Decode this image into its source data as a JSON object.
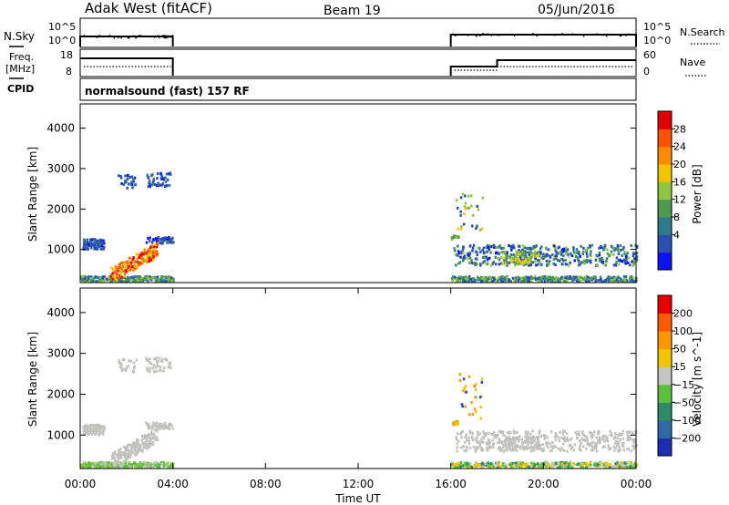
{
  "header": {
    "station": "Adak West (fitACF)",
    "beam": "Beam 19",
    "date": "05/Jun/2016"
  },
  "labels": {
    "nsky": "N.Sky",
    "freq_line1": "Freq.",
    "freq_line2": "[MHz]",
    "cpid": "CPID",
    "nsearch": "N.Search",
    "nave": "Nave"
  },
  "nsky_ticks": [
    "10^5",
    "10^0"
  ],
  "nsearch_ticks": [
    "10^5",
    "10^0"
  ],
  "freq_ticks": [
    "18",
    "8"
  ],
  "nave_ticks": [
    "60",
    "0"
  ],
  "cpid_text": "normalsound (fast) 157 RF",
  "chart_data": [
    {
      "type": "heatmap",
      "name": "power",
      "ylabel": "Slant Range [km]",
      "ylim": [
        180,
        4600
      ],
      "y_ticks": [
        1000,
        2000,
        3000,
        4000
      ],
      "xlim_hours": [
        0,
        24
      ],
      "colorbar_label": "Power [dB]",
      "colorbar_ticks": [
        "28",
        "24",
        "20",
        "16",
        "12",
        "8",
        "4"
      ],
      "colorbar_colors": [
        "#0a14ee",
        "#2b4fb4",
        "#2f7a8e",
        "#4e9a4e",
        "#8ec63f",
        "#f0c400",
        "#ff8c00",
        "#ff5000",
        "#e00000"
      ],
      "data_intervals_hours": [
        [
          0,
          4.0
        ],
        [
          16.0,
          24
        ]
      ]
    },
    {
      "type": "heatmap",
      "name": "velocity",
      "ylabel": "Slant Range [km]",
      "ylim": [
        180,
        4600
      ],
      "y_ticks": [
        1000,
        2000,
        3000,
        4000
      ],
      "xlim_hours": [
        0,
        24
      ],
      "colorbar_label": "Velocity [m s^-1]",
      "colorbar_ticks": [
        "200",
        "100",
        "50",
        "15",
        "−15",
        "−50",
        "−100",
        "−200"
      ],
      "colorbar_colors": [
        "#1a2eb0",
        "#2d6aa6",
        "#2e8a68",
        "#59c23a",
        "#c4c4c0",
        "#f0c400",
        "#ff9800",
        "#ff5a00",
        "#e80000"
      ],
      "data_intervals_hours": [
        [
          0,
          4.0
        ],
        [
          16.0,
          24
        ]
      ]
    }
  ],
  "time_axis": {
    "ticks": [
      "00:00",
      "04:00",
      "08:00",
      "12:00",
      "16:00",
      "20:00",
      "00:00"
    ],
    "label": "Time UT"
  }
}
